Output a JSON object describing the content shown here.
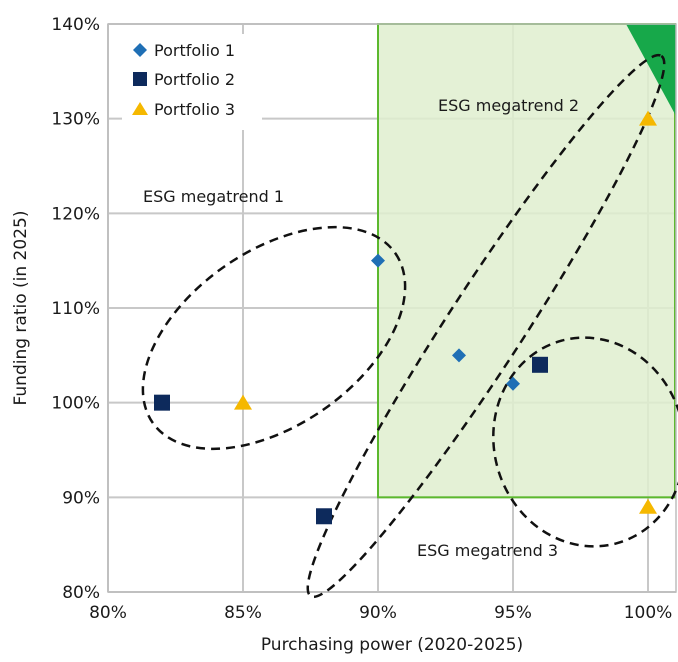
{
  "chart_data": {
    "type": "scatter",
    "title": "",
    "xlabel": "Purchasing power (2020-2025)",
    "ylabel": "Funding ratio (in 2025)",
    "xlim": [
      80,
      101
    ],
    "ylim": [
      80,
      140
    ],
    "x_ticks": [
      80,
      85,
      90,
      95,
      100
    ],
    "x_tick_labels": [
      "80%",
      "85%",
      "90%",
      "95%",
      "100%"
    ],
    "y_ticks": [
      80,
      90,
      100,
      110,
      120,
      130,
      140
    ],
    "y_tick_labels": [
      "80%",
      "90%",
      "100%",
      "110%",
      "120%",
      "130%",
      "140%"
    ],
    "grid": true,
    "legend_position": "top-left",
    "series": [
      {
        "name": "Portfolio 1",
        "marker": "diamond",
        "color": "#1f6fb5",
        "points": [
          {
            "x": 90,
            "y": 115
          },
          {
            "x": 93,
            "y": 105
          },
          {
            "x": 95,
            "y": 102
          }
        ]
      },
      {
        "name": "Portfolio 2",
        "marker": "square",
        "color": "#0d2a5c",
        "points": [
          {
            "x": 82,
            "y": 100
          },
          {
            "x": 88,
            "y": 88
          },
          {
            "x": 96,
            "y": 104
          }
        ]
      },
      {
        "name": "Portfolio 3",
        "marker": "triangle",
        "color": "#f5b800",
        "points": [
          {
            "x": 85,
            "y": 100
          },
          {
            "x": 100,
            "y": 130
          },
          {
            "x": 100,
            "y": 89
          }
        ]
      }
    ],
    "regions": [
      {
        "x_from": 90,
        "x_to": 101,
        "y_from": 90,
        "y_to": 140,
        "fill": "#dfeecf",
        "stroke": "#5cb82e"
      }
    ],
    "annotations": [
      {
        "text": "ESG megatrend 1"
      },
      {
        "text": "ESG megatrend 2"
      },
      {
        "text": "ESG megatrend 3"
      }
    ],
    "colors": {
      "grid": "#c8c8c8",
      "ellipse": "#111111",
      "corner_triangle": "#17a84a"
    }
  }
}
